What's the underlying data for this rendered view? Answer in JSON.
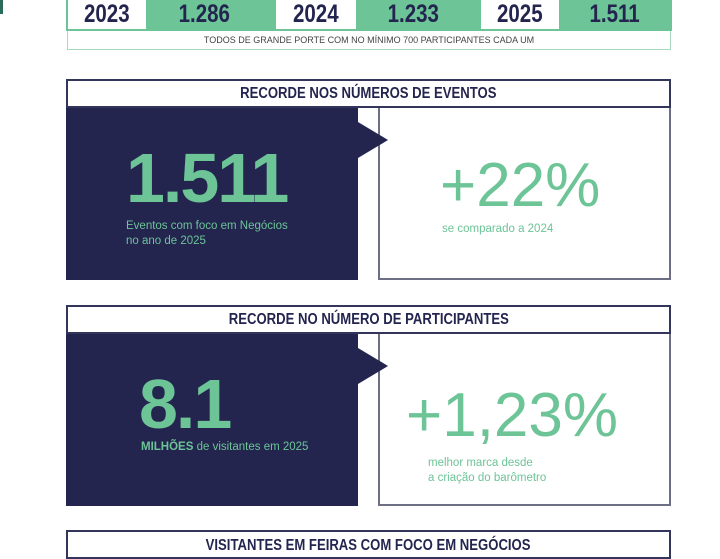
{
  "years_table": {
    "rows": [
      {
        "year": "2023",
        "value": "1.286"
      },
      {
        "year": "2024",
        "value": "1.233"
      },
      {
        "year": "2025",
        "value": "1.511"
      }
    ],
    "note": "TODOS DE GRANDE PORTE COM NO MÍNIMO 700 PARTICIPANTES CADA UM"
  },
  "events": {
    "title": "RECORDE NOS NÚMEROS DE EVENTOS",
    "big": "1.511",
    "caption_line1": "Eventos com foco em Negócios",
    "caption_line2": "no ano de 2025",
    "pct": "+22%",
    "pct_caption": "se comparado a 2024"
  },
  "participants": {
    "title": "RECORDE NO NÚMERO DE PARTICIPANTES",
    "big": "8.1",
    "caption_bold": "MILHÕES",
    "caption_rest": " de visitantes em 2025",
    "pct": "+1,23%",
    "pct_caption_line1": "melhor marca desde",
    "pct_caption_line2": "a criação do barômetro"
  },
  "next_section": {
    "title": "VISITANTES EM FEIRAS COM FOCO EM NEGÓCIOS"
  },
  "colors": {
    "navy": "#23254f",
    "green": "#6cc497"
  }
}
